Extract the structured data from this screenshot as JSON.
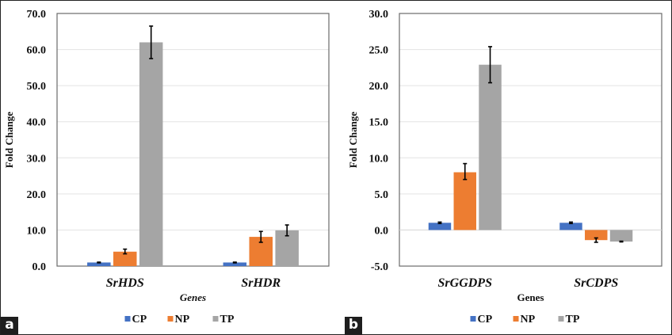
{
  "figure": {
    "panels": [
      {
        "tag": "a"
      },
      {
        "tag": "b"
      }
    ]
  },
  "colors": {
    "CP": "#4472C4",
    "NP": "#ED7D31",
    "TP": "#A5A5A5",
    "gridline": "#E3E3E3",
    "axis": "#6B6B6B",
    "errorbar": "#000000"
  },
  "chart_data": [
    {
      "type": "bar",
      "panel": "a",
      "title": "",
      "xlabel": "Genes",
      "xlabel_italic": true,
      "ylabel": "Fold Change",
      "ylim": [
        0,
        70
      ],
      "yticks": [
        0,
        10,
        20,
        30,
        40,
        50,
        60,
        70
      ],
      "ytick_labels": [
        "0.0",
        "10.0",
        "20.0",
        "30.0",
        "40.0",
        "50.0",
        "60.0",
        "70.0"
      ],
      "grid": true,
      "legend": "bottom",
      "categories": [
        "SrHDS",
        "SrHDR"
      ],
      "series": [
        {
          "name": "CP",
          "values": [
            1.0,
            1.0
          ],
          "error_low": [
            0.9,
            0.9
          ],
          "error_high": [
            1.1,
            1.1
          ]
        },
        {
          "name": "NP",
          "values": [
            4.0,
            8.1
          ],
          "error_low": [
            3.4,
            6.6
          ],
          "error_high": [
            4.7,
            9.6
          ]
        },
        {
          "name": "TP",
          "values": [
            62.0,
            9.9
          ],
          "error_low": [
            57.5,
            8.4
          ],
          "error_high": [
            66.5,
            11.4
          ]
        }
      ]
    },
    {
      "type": "bar",
      "panel": "b",
      "title": "",
      "xlabel": "Genes",
      "xlabel_italic": false,
      "ylabel": "Fold Change",
      "ylim": [
        -5,
        30
      ],
      "yticks": [
        -5,
        0,
        5,
        10,
        15,
        20,
        25,
        30
      ],
      "ytick_labels": [
        "-5.0",
        "0.0",
        "5.0",
        "10.0",
        "15.0",
        "20.0",
        "25.0",
        "30.0"
      ],
      "grid": true,
      "legend": "bottom",
      "categories": [
        "SrGGDPS",
        "SrCDPS"
      ],
      "series": [
        {
          "name": "CP",
          "values": [
            1.0,
            1.0
          ],
          "error_low": [
            0.9,
            0.9
          ],
          "error_high": [
            1.1,
            1.1
          ]
        },
        {
          "name": "NP",
          "values": [
            8.0,
            -1.4
          ],
          "error_low": [
            7.0,
            -1.7
          ],
          "error_high": [
            9.2,
            -1.1
          ]
        },
        {
          "name": "TP",
          "values": [
            22.9,
            -1.6
          ],
          "error_low": [
            20.4,
            -1.65
          ],
          "error_high": [
            25.4,
            -1.55
          ]
        }
      ]
    }
  ]
}
